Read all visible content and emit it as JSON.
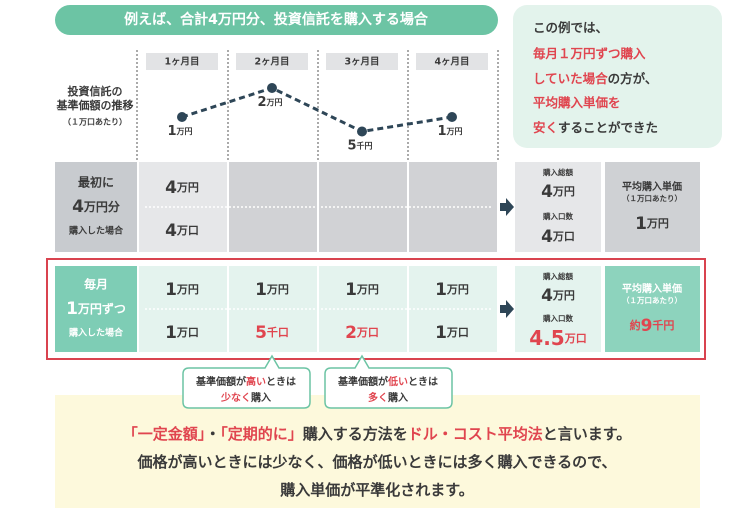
{
  "banner": "例えば、合計4万円分、投資信託を購入する場合",
  "summary": [
    [
      {
        "t": "この例では、"
      }
    ],
    [
      {
        "t": "毎月１万円ずつ購入",
        "em": true
      }
    ],
    [
      {
        "t": "していた場合",
        "em": true
      },
      {
        "t": "の方が、"
      }
    ],
    [
      {
        "t": "平均購入単価を",
        "em": true
      }
    ],
    [
      {
        "t": "安く",
        "em": true
      },
      {
        "t": "することができた"
      }
    ]
  ],
  "price_label": [
    "投資信託の",
    "基準価額の推移",
    "（１万口あたり）"
  ],
  "months": [
    "1ヶ月目",
    "2ヶ月目",
    "3ヶ月目",
    "4ヶ月目"
  ],
  "prices": [
    {
      "value": 10000,
      "num": "1",
      "unit": "万円"
    },
    {
      "value": 20000,
      "num": "2",
      "unit": "万円"
    },
    {
      "value": 5000,
      "num": "5",
      "unit": "千円"
    },
    {
      "value": 10000,
      "num": "1",
      "unit": "万円"
    }
  ],
  "rows": [
    {
      "label": [
        {
          "t": "最初に"
        },
        {
          "num": "4",
          "unit": "万円分"
        },
        {
          "t": "購入した場合"
        }
      ],
      "amounts": [
        {
          "num": "4",
          "unit": "万円"
        },
        null,
        null,
        null
      ],
      "units": [
        {
          "num": "4",
          "unit": "万口"
        },
        null,
        null,
        null
      ],
      "total_label": "購入総額",
      "total": {
        "num": "4",
        "unit": "万円"
      },
      "units_label": "購入口数",
      "units_total": {
        "num": "4",
        "unit": "万口"
      },
      "avg_label": "平均購入単価",
      "avg_note": "（１万口あたり）",
      "avg": {
        "num": "1",
        "unit": "万円"
      }
    },
    {
      "label": [
        {
          "t": "毎月"
        },
        {
          "num": "1",
          "unit": "万円ずつ"
        },
        {
          "t": "購入した場合"
        }
      ],
      "amounts": [
        {
          "num": "1",
          "unit": "万円"
        },
        {
          "num": "1",
          "unit": "万円"
        },
        {
          "num": "1",
          "unit": "万円"
        },
        {
          "num": "1",
          "unit": "万円"
        }
      ],
      "units": [
        {
          "num": "1",
          "unit": "万口"
        },
        {
          "num": "5",
          "unit": "千口",
          "em": true
        },
        {
          "num": "2",
          "unit": "万口",
          "em": true
        },
        {
          "num": "1",
          "unit": "万口"
        }
      ],
      "total_label": "購入総額",
      "total": {
        "num": "4",
        "unit": "万円"
      },
      "units_label": "購入口数",
      "units_total": {
        "num": "4.5",
        "unit": "万口",
        "em": true
      },
      "avg_label": "平均購入単価",
      "avg_note": "（１万口あたり）",
      "avg": {
        "pre": "約",
        "num": "9",
        "unit": "千円",
        "em": true
      }
    }
  ],
  "callouts": [
    [
      [
        {
          "t": "基準価額が"
        },
        {
          "t": "高い",
          "em": true
        },
        {
          "t": "ときは"
        }
      ],
      [
        {
          "t": "少なく",
          "em": true
        },
        {
          "t": "購入"
        }
      ]
    ],
    [
      [
        {
          "t": "基準価額が"
        },
        {
          "t": "低い",
          "em": true
        },
        {
          "t": "ときは"
        }
      ],
      [
        {
          "t": "多く",
          "em": true
        },
        {
          "t": "購入"
        }
      ]
    ]
  ],
  "footer": [
    [
      {
        "t": "「一定金額」",
        "em": true
      },
      {
        "t": "・"
      },
      {
        "t": "「定期的に」",
        "em": true
      },
      {
        "t": "購入する方法を"
      },
      {
        "t": "ドル・コスト平均法",
        "em": true
      },
      {
        "t": "と言います。"
      }
    ],
    [
      {
        "t": "価格が高いときには少なく、価格が低いときには多く購入できるので、"
      }
    ],
    [
      {
        "t": "購入単価が平準化されます。"
      }
    ]
  ]
}
